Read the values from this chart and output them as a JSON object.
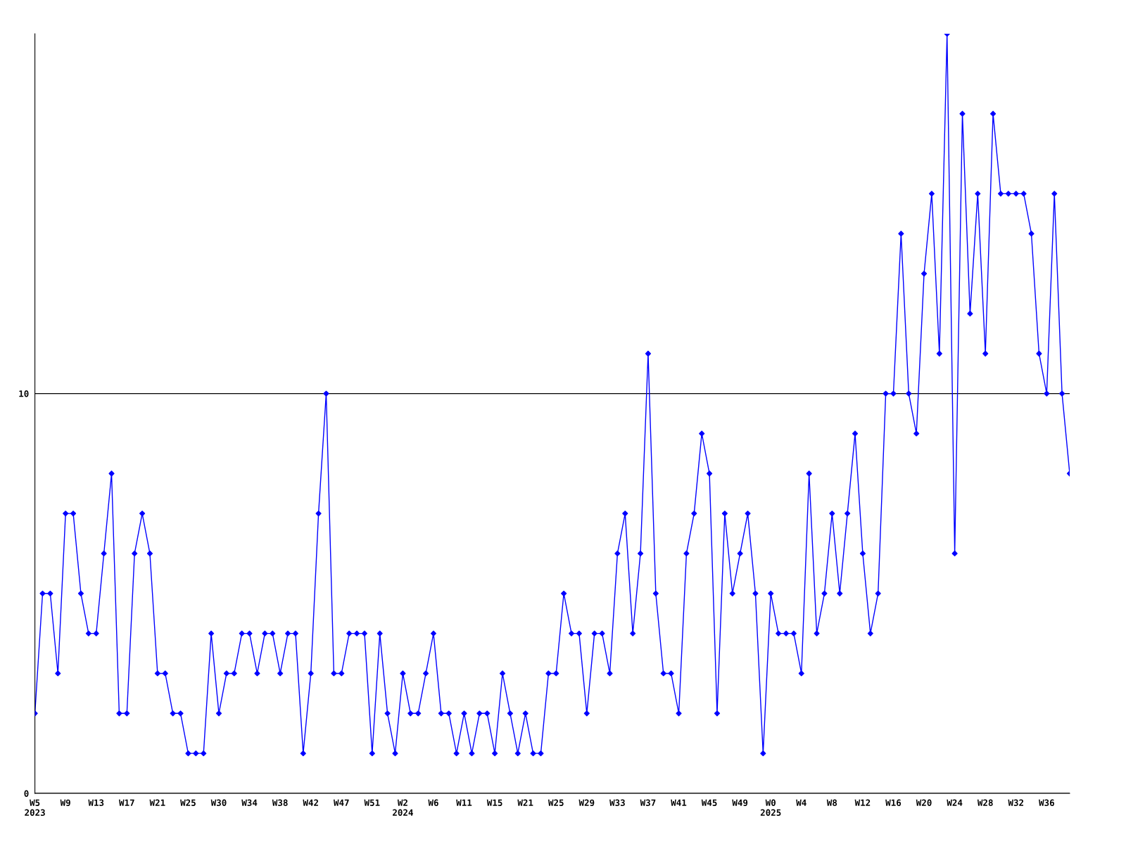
{
  "chart_data": {
    "type": "line",
    "categories": [
      "W5\n2023",
      null,
      null,
      null,
      "W9",
      null,
      null,
      null,
      "W13",
      null,
      null,
      null,
      "W17",
      null,
      null,
      null,
      "W21",
      null,
      null,
      null,
      "W25",
      null,
      null,
      null,
      "W30",
      null,
      null,
      null,
      "W34",
      null,
      null,
      null,
      "W38",
      null,
      null,
      null,
      "W42",
      null,
      null,
      null,
      "W47",
      null,
      null,
      null,
      "W51",
      null,
      null,
      null,
      "W2\n2024",
      null,
      null,
      null,
      "W6",
      null,
      null,
      null,
      "W11",
      null,
      null,
      null,
      "W15",
      null,
      null,
      null,
      "W21",
      null,
      null,
      null,
      "W25",
      null,
      null,
      null,
      "W29",
      null,
      null,
      null,
      "W33",
      null,
      null,
      null,
      "W37",
      null,
      null,
      null,
      "W41",
      null,
      null,
      null,
      "W45",
      null,
      null,
      null,
      "W49",
      null,
      null,
      null,
      "W0\n2025",
      null,
      null,
      null,
      "W4",
      null,
      null,
      null,
      "W8",
      null,
      null,
      null,
      "W12",
      null,
      null,
      null,
      "W16",
      null,
      null,
      null,
      "W20",
      null,
      null,
      null,
      "W24",
      null,
      null,
      null,
      "W28",
      null,
      null,
      null,
      "W32",
      null,
      null,
      null,
      "W36",
      null,
      null,
      null
    ],
    "series": [
      {
        "color": "#0000ff",
        "values": [
          2,
          5,
          5,
          3,
          7,
          7,
          5,
          4,
          4,
          6,
          8,
          2,
          2,
          6,
          7,
          6,
          3,
          3,
          2,
          2,
          1,
          1,
          1,
          4,
          2,
          3,
          3,
          4,
          4,
          3,
          4,
          4,
          3,
          4,
          4,
          1,
          3,
          7,
          10,
          3,
          3,
          4,
          4,
          4,
          1,
          4,
          2,
          1,
          3,
          2,
          2,
          3,
          4,
          2,
          2,
          1,
          2,
          1,
          2,
          2,
          1,
          3,
          2,
          1,
          2,
          1,
          1,
          3,
          3,
          5,
          4,
          4,
          2,
          4,
          4,
          3,
          6,
          7,
          4,
          6,
          11,
          5,
          3,
          3,
          2,
          6,
          7,
          9,
          8,
          2,
          7,
          5,
          6,
          7,
          5,
          1,
          5,
          4,
          4,
          4,
          3,
          8,
          4,
          5,
          7,
          5,
          7,
          9,
          6,
          4,
          5,
          10,
          10,
          14,
          10,
          9,
          13,
          15,
          11,
          19,
          6,
          17,
          12,
          15,
          11,
          17,
          15,
          15,
          15,
          15,
          14,
          11,
          10,
          15,
          10,
          8
        ]
      }
    ],
    "ylim": [
      0,
      19
    ],
    "yticks": [
      0,
      10
    ],
    "grid": "y",
    "marker": "diamond",
    "line_style": "solid"
  }
}
